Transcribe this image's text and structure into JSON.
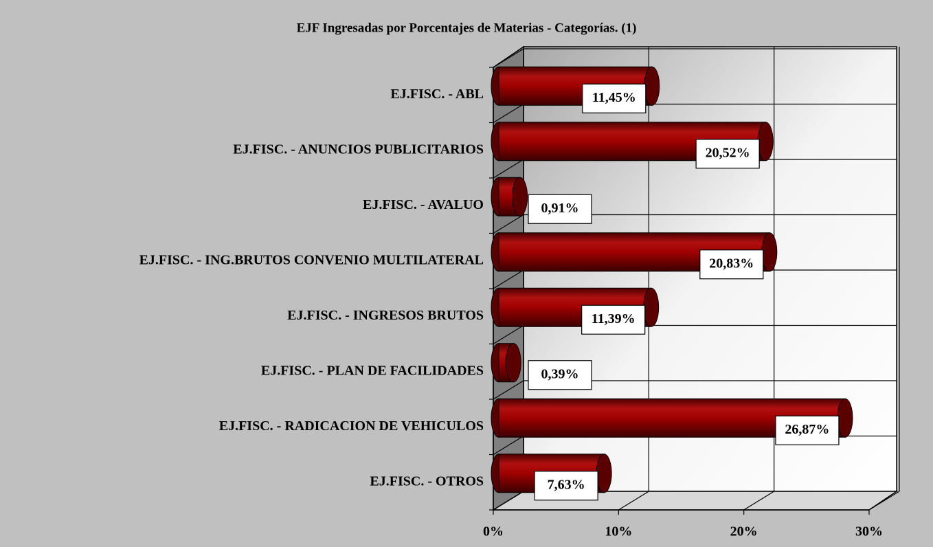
{
  "chart_data": {
    "type": "bar",
    "orientation": "horizontal",
    "title": "EJF Ingresadas por Porcentajes de Materias - Categorías. (1)",
    "categories": [
      "EJ.FISC. - ABL",
      "EJ.FISC. - ANUNCIOS PUBLICITARIOS",
      "EJ.FISC. - AVALUO",
      "EJ.FISC. - ING.BRUTOS CONVENIO MULTILATERAL",
      "EJ.FISC. - INGRESOS BRUTOS",
      "EJ.FISC. - PLAN DE FACILIDADES",
      "EJ.FISC. - RADICACION DE VEHICULOS",
      "EJ.FISC. - OTROS"
    ],
    "values": [
      11.45,
      20.52,
      0.91,
      20.83,
      11.39,
      0.39,
      26.87,
      7.63
    ],
    "value_labels": [
      "11,45%",
      "20,52%",
      "0,91%",
      "20,83%",
      "11,39%",
      "0,39%",
      "26,87%",
      "7,63%"
    ],
    "color": "#8b0000",
    "xlim": [
      0,
      30
    ],
    "xticks": [
      {
        "value": 0,
        "label": "0%"
      },
      {
        "value": 10,
        "label": "10%"
      },
      {
        "value": 20,
        "label": "20%"
      },
      {
        "value": 30,
        "label": "30%"
      }
    ],
    "grid": true
  }
}
